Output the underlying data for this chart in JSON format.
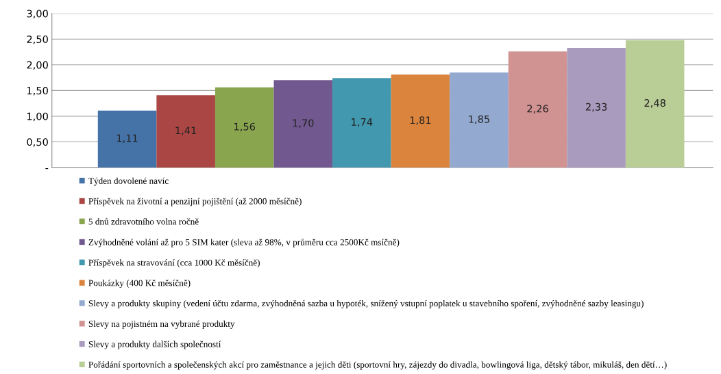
{
  "chart_data": {
    "type": "bar",
    "categories": [
      null
    ],
    "series": [
      {
        "name": "Týden dovolené navíc",
        "color": "#4572a7",
        "values": [
          1.11
        ],
        "value_labels": [
          "1,11"
        ]
      },
      {
        "name": "Příspěvek na životní a penzijní pojištění (až 2000 měsíčně)",
        "color": "#aa4643",
        "values": [
          1.41
        ],
        "value_labels": [
          "1,41"
        ]
      },
      {
        "name": "5 dnů zdravotního volna ročně",
        "color": "#89a54e",
        "values": [
          1.56
        ],
        "value_labels": [
          "1,56"
        ]
      },
      {
        "name": "Zvýhodněné volání až pro 5 SIM kater (sleva až 98%, v průměru cca 2500Kč msíčně)",
        "color": "#71588f",
        "values": [
          1.7
        ],
        "value_labels": [
          "1,70"
        ]
      },
      {
        "name": "Příspěvek na stravování (cca 1000 Kč měsíčně)",
        "color": "#4198af",
        "values": [
          1.74
        ],
        "value_labels": [
          "1,74"
        ]
      },
      {
        "name": "Poukázky (400 Kč měsíčně)",
        "color": "#db843d",
        "values": [
          1.81
        ],
        "value_labels": [
          "1,81"
        ]
      },
      {
        "name": "Slevy a produkty skupiny (vedení účtu zdarma, zvýhodněná sazba u hypoték, snížený vstupní poplatek u stavebního spoření, zvýhodněné sazby leasingu)",
        "color": "#93a9cf",
        "values": [
          1.85
        ],
        "value_labels": [
          "1,85"
        ]
      },
      {
        "name": "Slevy na pojistném na vybrané produkty",
        "color": "#d19392",
        "values": [
          2.26
        ],
        "value_labels": [
          "2,26"
        ]
      },
      {
        "name": "Slevy a produkty dalších společností",
        "color": "#a99bbd",
        "values": [
          2.33
        ],
        "value_labels": [
          "2,33"
        ]
      },
      {
        "name": "Pořádání sportovních a společenských akcí pro zaměstnance a jejich děti (sportovní hry, zájezdy do divadla, bowlingová liga, dětský tábor, mikuláš, den dětí…)",
        "color": "#b9cd96",
        "values": [
          2.48
        ],
        "value_labels": [
          "2,48"
        ]
      }
    ],
    "ylim": [
      0,
      3
    ],
    "yticks": [
      {
        "value": 0,
        "label": "-"
      },
      {
        "value": 0.5,
        "label": "0,50"
      },
      {
        "value": 1,
        "label": "1,00"
      },
      {
        "value": 1.5,
        "label": "1,50"
      },
      {
        "value": 2,
        "label": "2,00"
      },
      {
        "value": 2.5,
        "label": "2,50"
      },
      {
        "value": 3,
        "label": "3,00"
      }
    ],
    "grid": "y",
    "legend": "bottom"
  }
}
